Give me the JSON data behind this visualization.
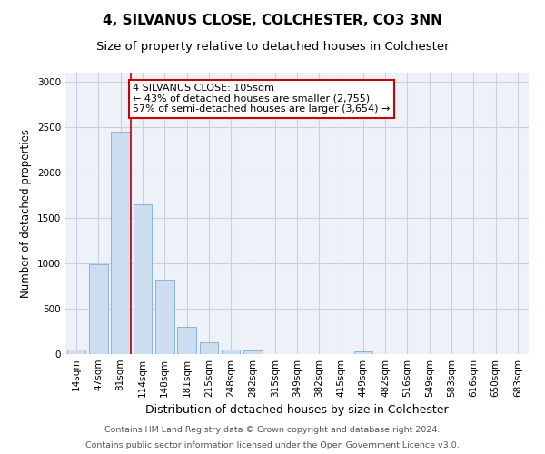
{
  "title": "4, SILVANUS CLOSE, COLCHESTER, CO3 3NN",
  "subtitle": "Size of property relative to detached houses in Colchester",
  "xlabel": "Distribution of detached houses by size in Colchester",
  "ylabel": "Number of detached properties",
  "categories": [
    "14sqm",
    "47sqm",
    "81sqm",
    "114sqm",
    "148sqm",
    "181sqm",
    "215sqm",
    "248sqm",
    "282sqm",
    "315sqm",
    "349sqm",
    "382sqm",
    "415sqm",
    "449sqm",
    "482sqm",
    "516sqm",
    "549sqm",
    "583sqm",
    "616sqm",
    "650sqm",
    "683sqm"
  ],
  "values": [
    55,
    995,
    2450,
    1650,
    820,
    300,
    130,
    50,
    40,
    0,
    0,
    0,
    0,
    30,
    0,
    0,
    0,
    0,
    0,
    0,
    0
  ],
  "bar_color": "#ccddf0",
  "bar_edge_color": "#89b4d9",
  "vline_color": "#cc0000",
  "annotation_text": "4 SILVANUS CLOSE: 105sqm\n← 43% of detached houses are smaller (2,755)\n57% of semi-detached houses are larger (3,654) →",
  "annotation_box_facecolor": "#ffffff",
  "annotation_box_edgecolor": "#cc0000",
  "ylim": [
    0,
    3100
  ],
  "yticks": [
    0,
    500,
    1000,
    1500,
    2000,
    2500,
    3000
  ],
  "grid_color": "#c8d0dc",
  "bg_color": "#eef2f8",
  "footer_line1": "Contains HM Land Registry data © Crown copyright and database right 2024.",
  "footer_line2": "Contains public sector information licensed under the Open Government Licence v3.0.",
  "title_fontsize": 11,
  "subtitle_fontsize": 9.5,
  "xlabel_fontsize": 9,
  "ylabel_fontsize": 8.5,
  "tick_fontsize": 7.5,
  "annotation_fontsize": 8,
  "footer_fontsize": 6.8
}
